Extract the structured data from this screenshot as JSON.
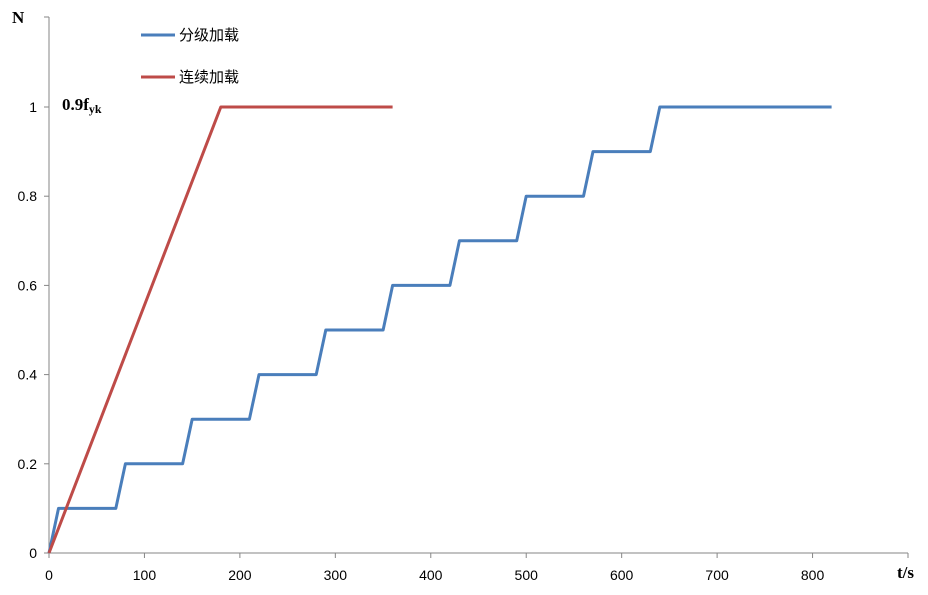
{
  "chart_data": {
    "type": "line",
    "title": "",
    "xlabel": "t/s",
    "ylabel": "N",
    "xlim": [
      0,
      900
    ],
    "ylim": [
      0,
      1.2
    ],
    "x_ticks": [
      0,
      100,
      200,
      300,
      400,
      500,
      600,
      700,
      800
    ],
    "y_ticks": [
      0,
      0.2,
      0.4,
      0.6,
      0.8,
      1
    ],
    "x_tick_labels": [
      "0",
      "100",
      "200",
      "300",
      "400",
      "500",
      "600",
      "700",
      "800"
    ],
    "y_tick_labels": [
      "0",
      "0.2",
      "0.4",
      "0.6",
      "0.8",
      "1"
    ],
    "grid": false,
    "legend_position": "top-left",
    "annotation": {
      "text_main": "0.9f",
      "text_sub": "yk",
      "at_y": 1
    },
    "series": [
      {
        "name": "分级加载",
        "color": "#4a7ebb",
        "x": [
          0,
          10,
          70,
          80,
          140,
          150,
          210,
          220,
          280,
          290,
          350,
          360,
          420,
          430,
          490,
          500,
          560,
          570,
          630,
          640,
          820
        ],
        "y": [
          0,
          0.1,
          0.1,
          0.2,
          0.2,
          0.3,
          0.3,
          0.4,
          0.4,
          0.5,
          0.5,
          0.6,
          0.6,
          0.7,
          0.7,
          0.8,
          0.8,
          0.9,
          0.9,
          1.0,
          1.0
        ]
      },
      {
        "name": "连续加载",
        "color": "#be4b48",
        "x": [
          0,
          180,
          360
        ],
        "y": [
          0,
          1.0,
          1.0
        ]
      }
    ]
  }
}
